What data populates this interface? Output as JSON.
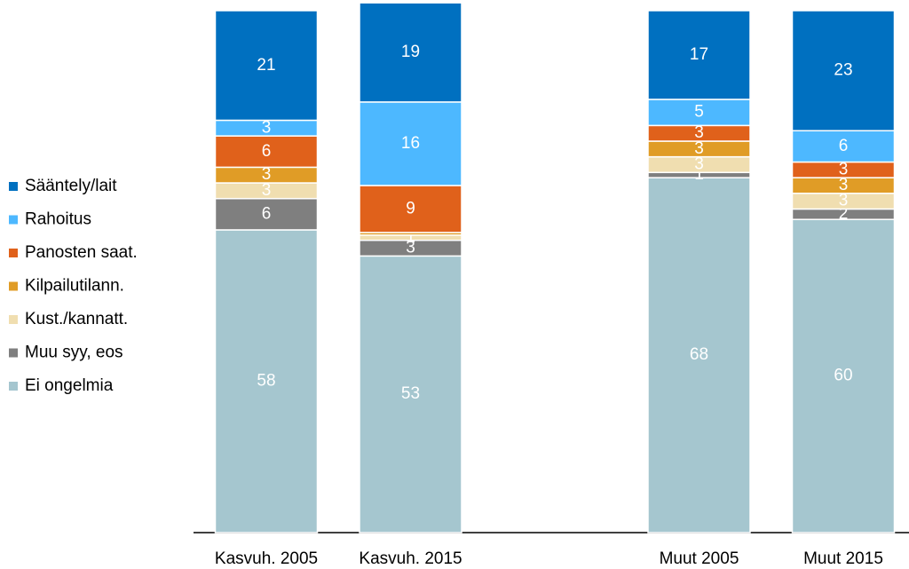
{
  "chart_data": {
    "type": "stacked_bar",
    "categories": [
      "Kasvuh. 2005",
      "Kasvuh. 2015",
      null,
      "Muut 2005",
      "Muut 2015"
    ],
    "ylim": [
      0,
      100
    ],
    "series": [
      {
        "name": "Sääntely/lait",
        "color": "#0070c0",
        "values": [
          21,
          19,
          null,
          17,
          23
        ]
      },
      {
        "name": "Rahoitus",
        "color": "#4db8ff",
        "values": [
          3,
          16,
          null,
          5,
          6
        ]
      },
      {
        "name": "Panosten saat.",
        "color": "#e0611b",
        "values": [
          6,
          9,
          null,
          3,
          3
        ]
      },
      {
        "name": "Kilpailutilann.",
        "color": "#e09c26",
        "values": [
          3,
          0.5,
          null,
          3,
          3
        ]
      },
      {
        "name": "Kust./kannatt.",
        "color": "#f0deb0",
        "values": [
          3,
          1,
          null,
          3,
          3
        ]
      },
      {
        "name": "Muu syy, eos",
        "color": "#7f7f7f",
        "values": [
          6,
          3,
          null,
          1,
          2
        ]
      },
      {
        "name": "Ei ongelmia",
        "color": "#a5c6cf",
        "values": [
          58,
          53,
          null,
          68,
          60
        ]
      }
    ]
  }
}
